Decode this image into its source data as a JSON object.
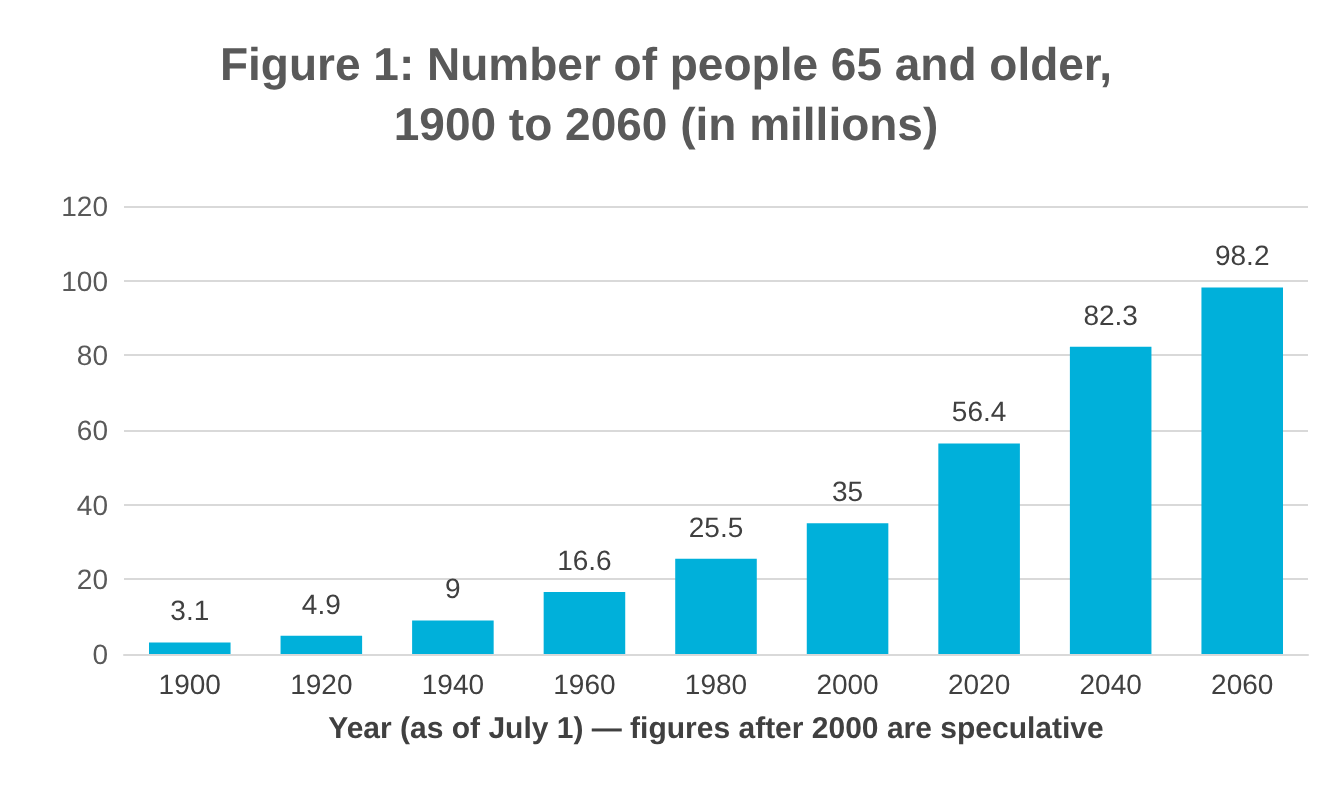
{
  "chart_data": {
    "type": "bar",
    "title": "Figure 1: Number of people 65 and older,\n1900 to 2060 (in millions)",
    "xlabel": "Year (as of July 1) — figures after 2000 are speculative",
    "categories": [
      "1900",
      "1920",
      "1940",
      "1960",
      "1980",
      "2000",
      "2020",
      "2040",
      "2060"
    ],
    "values": [
      3.1,
      4.9,
      9,
      16.6,
      25.5,
      35,
      56.4,
      82.3,
      98.2
    ],
    "color": "#00b0da",
    "ylim": [
      0,
      120
    ],
    "yticks": [
      0,
      20,
      40,
      60,
      80,
      100,
      120
    ],
    "grid": "y",
    "data_labels": true
  }
}
